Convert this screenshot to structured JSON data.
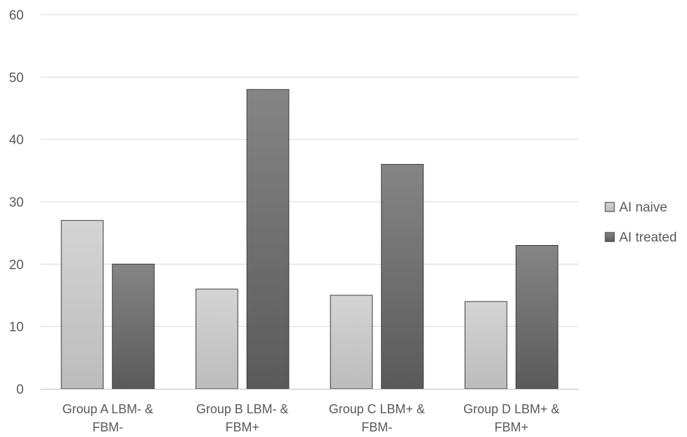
{
  "chart_data": {
    "type": "bar",
    "categories": [
      [
        "Group A LBM-  &",
        "FBM-"
      ],
      [
        "Group B LBM-  &",
        "FBM+"
      ],
      [
        "Group C LBM+  &",
        "FBM-"
      ],
      [
        "Group D LBM+  &",
        "FBM+"
      ]
    ],
    "series": [
      {
        "name": "AI naive",
        "values": [
          27,
          16,
          15,
          14
        ],
        "color": "#c8c8c8"
      },
      {
        "name": "AI treated",
        "values": [
          20,
          48,
          36,
          23
        ],
        "color": "#6e6e6e"
      }
    ],
    "title": "",
    "xlabel": "",
    "ylabel": "",
    "ylim": [
      0,
      60
    ],
    "yticks": [
      0,
      10,
      20,
      30,
      40,
      50,
      60
    ],
    "grid": true,
    "legend_position": "right"
  }
}
